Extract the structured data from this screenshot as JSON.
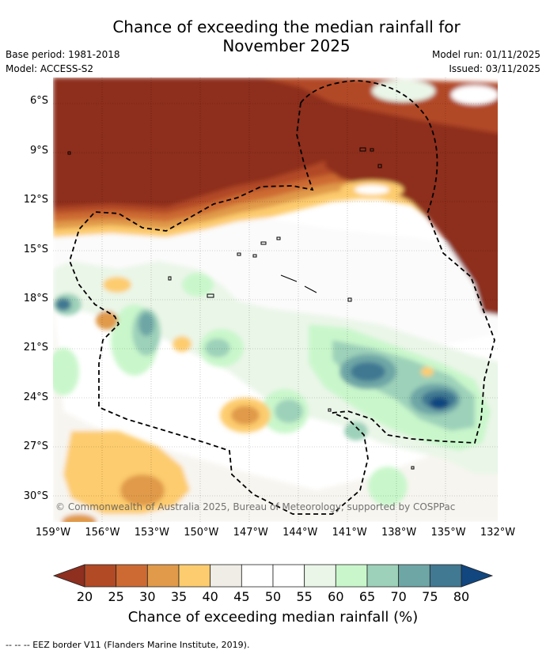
{
  "title_line1": "Chance of exceeding the median rainfall for",
  "title_line2": "November 2025",
  "meta": {
    "base_period": "Base period: 1981-2018",
    "model": "Model: ACCESS-S2",
    "model_run": "Model run: 01/11/2025",
    "issued": "Issued: 03/11/2025"
  },
  "y_ticks": [
    "6°S",
    "9°S",
    "12°S",
    "15°S",
    "18°S",
    "21°S",
    "24°S",
    "27°S",
    "30°S"
  ],
  "x_ticks": [
    "159°W",
    "156°W",
    "153°W",
    "150°W",
    "147°W",
    "144°W",
    "141°W",
    "138°W",
    "135°W",
    "132°W"
  ],
  "copyright": "© Commonwealth of Australia 2025, Bureau of Meteorology, supported by COSPPac",
  "colorbar": {
    "ticks": [
      "20",
      "25",
      "30",
      "35",
      "40",
      "45",
      "50",
      "55",
      "60",
      "65",
      "70",
      "75",
      "80"
    ],
    "colors": [
      "#8e2f1f",
      "#b24a25",
      "#cd6a33",
      "#e09a4a",
      "#fdcc6e",
      "#f0ede6",
      "#ffffff",
      "#ffffff",
      "#eaf6e8",
      "#c9f7cb",
      "#9dd1b9",
      "#6ea6a6",
      "#417892",
      "#11467f"
    ],
    "label": "Chance of exceeding median rainfall (%)"
  },
  "footer": "-- -- -- EEZ border V11 (Flanders Marine Institute, 2019).",
  "chart_data": {
    "type": "heatmap",
    "title": "Chance of exceeding the median rainfall for November 2025",
    "lon_range": [
      -159,
      -132
    ],
    "lat_range": [
      -31.5,
      -4.5
    ],
    "x_ticks_lon": [
      -159,
      -156,
      -153,
      -150,
      -147,
      -144,
      -141,
      -138,
      -135,
      -132
    ],
    "y_ticks_lat": [
      -6,
      -9,
      -12,
      -15,
      -18,
      -21,
      -24,
      -27,
      -30
    ],
    "value_unit": "%",
    "levels": [
      20,
      25,
      30,
      35,
      40,
      45,
      50,
      55,
      60,
      65,
      70,
      75,
      80
    ],
    "regions": [
      {
        "name": "dry-north-core",
        "value": 18,
        "lon": [
          -159,
          -132
        ],
        "lat": [
          -13,
          -4.5
        ]
      },
      {
        "name": "dry-east",
        "value": 20,
        "lon": [
          -140,
          -132
        ],
        "lat": [
          -18,
          -10
        ]
      },
      {
        "name": "transition-band",
        "value": 35,
        "lon": [
          -159,
          -132
        ],
        "lat": [
          -16,
          -12
        ]
      },
      {
        "name": "wet-southeast",
        "value": 78,
        "lon": [
          -137,
          -134
        ],
        "lat": [
          -26,
          -23
        ]
      },
      {
        "name": "wet-central",
        "value": 72,
        "lon": [
          -141,
          -138
        ],
        "lat": [
          -24.5,
          -21.5
        ]
      },
      {
        "name": "wet-west",
        "value": 70,
        "lon": [
          -159,
          -157.5
        ],
        "lat": [
          -19,
          -17.5
        ]
      },
      {
        "name": "wet-153",
        "value": 70,
        "lon": [
          -154,
          -152
        ],
        "lat": [
          -22,
          -19
        ]
      },
      {
        "name": "dry-southwest",
        "value": 35,
        "lon": [
          -157,
          -150
        ],
        "lat": [
          -30,
          -26
        ]
      },
      {
        "name": "dry-147",
        "value": 35,
        "lon": [
          -148.5,
          -146
        ],
        "lat": [
          -26,
          -24
        ]
      }
    ]
  }
}
